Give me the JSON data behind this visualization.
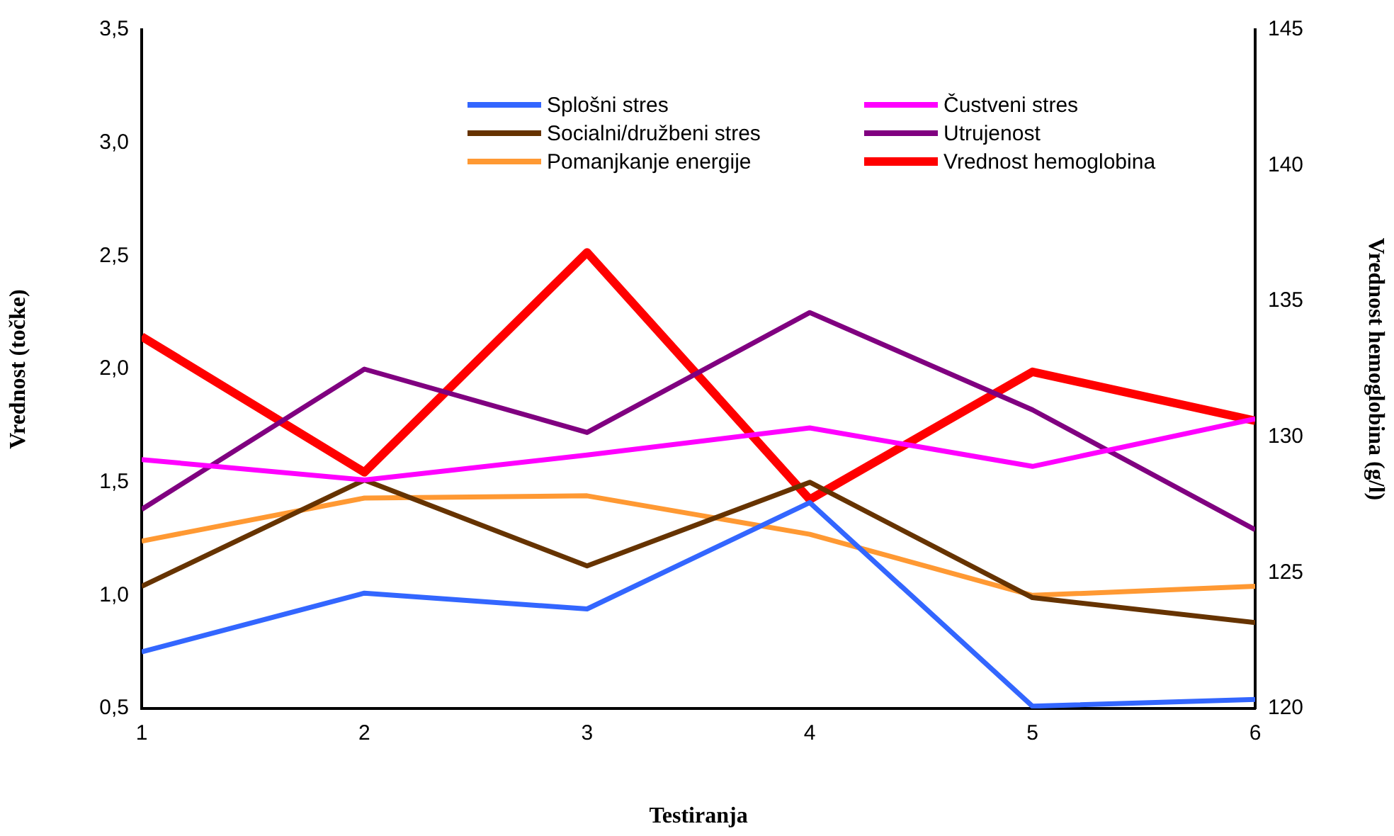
{
  "chart_data": {
    "type": "line",
    "xlabel": "Testiranja",
    "ylabel": "Vrednost (točke)",
    "y2label": "Vrednost hemoglobina (g/l)",
    "x": [
      1,
      2,
      3,
      4,
      5,
      6
    ],
    "xlim": [
      1,
      6
    ],
    "xticks": [
      1,
      2,
      3,
      4,
      5,
      6
    ],
    "ylim": [
      0.5,
      3.5
    ],
    "yticks": [
      {
        "value": 0.5,
        "label": "0,5"
      },
      {
        "value": 1,
        "label": "1,0"
      },
      {
        "value": 1.5,
        "label": "1,5"
      },
      {
        "value": 2,
        "label": "2,0"
      },
      {
        "value": 2.5,
        "label": "2,5"
      },
      {
        "value": 3,
        "label": "3,0"
      },
      {
        "value": 3.5,
        "label": "3,5"
      }
    ],
    "y2lim": [
      120,
      145
    ],
    "y2ticks": [
      120,
      125,
      130,
      135,
      140,
      145
    ],
    "grid": false,
    "legend": "top",
    "marker": "none",
    "line_style": "solid",
    "series": [
      {
        "name": "Splošni stres",
        "color": "#3366ff",
        "values": [
          0.75,
          1.01,
          0.94,
          1.41,
          0.51,
          0.54
        ]
      },
      {
        "name": "Čustveni stres",
        "color": "#ff00ff",
        "values": [
          1.6,
          1.51,
          1.62,
          1.74,
          1.57,
          1.78
        ]
      },
      {
        "name": "Socialni/družbeni stres",
        "color": "#663300",
        "values": [
          1.04,
          1.51,
          1.13,
          1.5,
          0.99,
          0.88
        ]
      },
      {
        "name": "Utrujenost",
        "color": "#800080",
        "values": [
          1.38,
          2.0,
          1.72,
          2.25,
          1.82,
          1.29
        ]
      },
      {
        "name": "Pomanjkanje energije",
        "color": "#ff9933",
        "values": [
          1.24,
          1.43,
          1.44,
          1.27,
          1.0,
          1.04
        ]
      },
      {
        "name": "Vrednost hemoglobina",
        "color": "#ff0000",
        "axis": "y2",
        "values": [
          133.7,
          128.7,
          136.8,
          127.7,
          132.4,
          130.6
        ]
      }
    ]
  }
}
